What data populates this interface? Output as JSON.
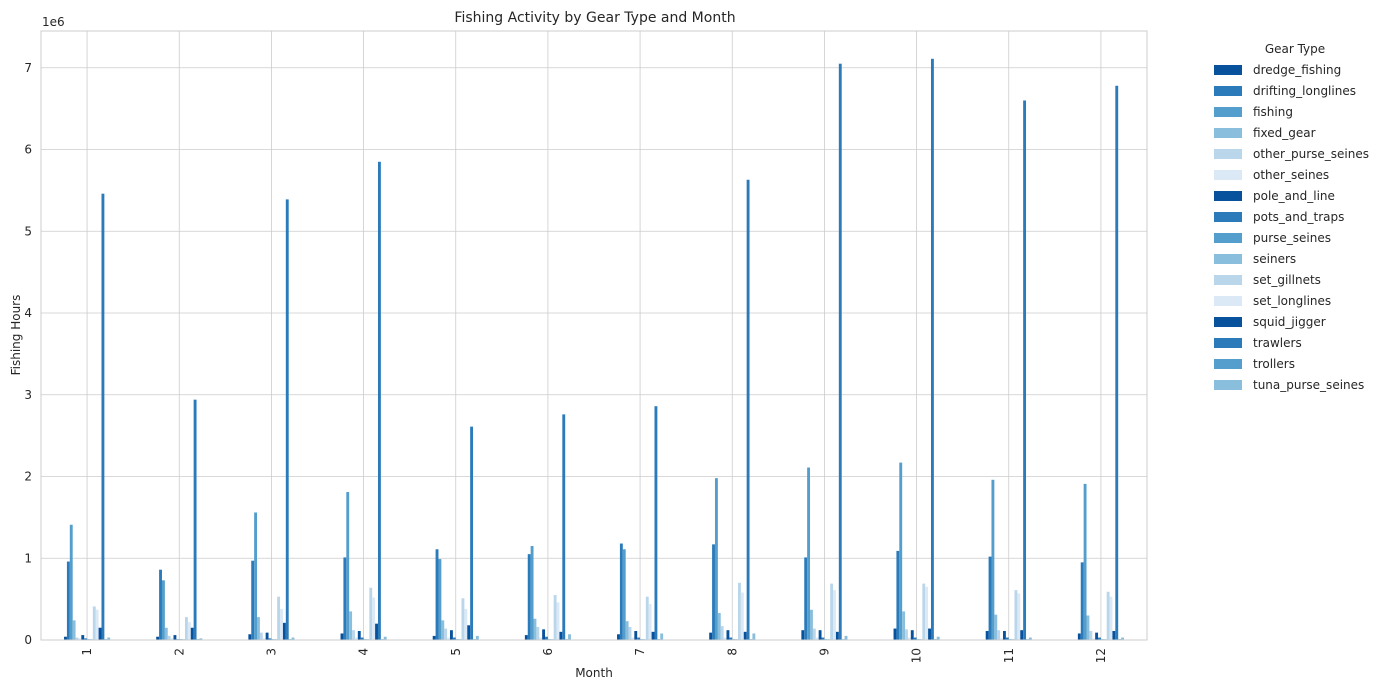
{
  "chart_data": {
    "type": "bar",
    "title": "Fishing Activity by Gear Type and Month",
    "xlabel": "Month",
    "ylabel": "Fishing Hours",
    "y_scale_label": "1e6",
    "ylim": [
      0,
      7.45
    ],
    "yticks": [
      0,
      1,
      2,
      3,
      4,
      5,
      6,
      7
    ],
    "grid": true,
    "legend_title": "Gear Type",
    "legend_position": "outside-right",
    "categories": [
      "1",
      "2",
      "3",
      "4",
      "5",
      "6",
      "7",
      "8",
      "9",
      "10",
      "11",
      "12"
    ],
    "series": [
      {
        "name": "dredge_fishing",
        "color": "#08519c",
        "values": [
          0.04,
          0.04,
          0.07,
          0.08,
          0.05,
          0.06,
          0.07,
          0.09,
          0.12,
          0.14,
          0.11,
          0.08
        ]
      },
      {
        "name": "drifting_longlines",
        "color": "#2b7bba",
        "values": [
          0.96,
          0.86,
          0.97,
          1.01,
          1.11,
          1.05,
          1.18,
          1.17,
          1.01,
          1.09,
          1.02,
          0.95
        ]
      },
      {
        "name": "fishing",
        "color": "#539ecd",
        "values": [
          1.41,
          0.73,
          1.56,
          1.81,
          0.99,
          1.15,
          1.11,
          1.98,
          2.11,
          2.17,
          1.96,
          1.91
        ]
      },
      {
        "name": "fixed_gear",
        "color": "#89bedc",
        "values": [
          0.24,
          0.15,
          0.28,
          0.35,
          0.24,
          0.26,
          0.23,
          0.33,
          0.37,
          0.35,
          0.31,
          0.3
        ]
      },
      {
        "name": "other_purse_seines",
        "color": "#bad6eb",
        "values": [
          0.03,
          0.05,
          0.09,
          0.12,
          0.14,
          0.16,
          0.16,
          0.17,
          0.14,
          0.13,
          0.12,
          0.11
        ]
      },
      {
        "name": "other_seines",
        "color": "#dbe9f6",
        "values": [
          0.02,
          0.02,
          0.02,
          0.03,
          0.03,
          0.03,
          0.03,
          0.03,
          0.03,
          0.03,
          0.02,
          0.02
        ]
      },
      {
        "name": "pole_and_line",
        "color": "#08519c",
        "values": [
          0.06,
          0.06,
          0.09,
          0.11,
          0.12,
          0.13,
          0.11,
          0.12,
          0.12,
          0.12,
          0.11,
          0.09
        ]
      },
      {
        "name": "pots_and_traps",
        "color": "#2b7bba",
        "values": [
          0.02,
          0.01,
          0.02,
          0.03,
          0.03,
          0.04,
          0.03,
          0.03,
          0.03,
          0.03,
          0.03,
          0.03
        ]
      },
      {
        "name": "purse_seines",
        "color": "#539ecd",
        "values": [
          0.01,
          0.01,
          0.01,
          0.01,
          0.01,
          0.01,
          0.01,
          0.01,
          0.01,
          0.01,
          0.01,
          0.01
        ]
      },
      {
        "name": "seiners",
        "color": "#89bedc",
        "values": [
          0.01,
          0.01,
          0.01,
          0.01,
          0.01,
          0.01,
          0.01,
          0.01,
          0.01,
          0.01,
          0.01,
          0.01
        ]
      },
      {
        "name": "set_gillnets",
        "color": "#bad6eb",
        "values": [
          0.41,
          0.28,
          0.53,
          0.64,
          0.51,
          0.55,
          0.53,
          0.7,
          0.69,
          0.69,
          0.61,
          0.59
        ]
      },
      {
        "name": "set_longlines",
        "color": "#dbe9f6",
        "values": [
          0.37,
          0.22,
          0.38,
          0.52,
          0.38,
          0.46,
          0.44,
          0.58,
          0.61,
          0.65,
          0.57,
          0.53
        ]
      },
      {
        "name": "squid_jigger",
        "color": "#08519c",
        "values": [
          0.15,
          0.15,
          0.21,
          0.2,
          0.18,
          0.1,
          0.1,
          0.1,
          0.1,
          0.14,
          0.12,
          0.11
        ]
      },
      {
        "name": "trawlers",
        "color": "#2b7bba",
        "values": [
          5.46,
          2.94,
          5.39,
          5.85,
          2.61,
          2.76,
          2.86,
          5.63,
          7.05,
          7.11,
          6.6,
          6.78
        ]
      },
      {
        "name": "trollers",
        "color": "#539ecd",
        "values": [
          0.01,
          0.01,
          0.01,
          0.01,
          0.01,
          0.01,
          0.01,
          0.01,
          0.01,
          0.01,
          0.01,
          0.01
        ]
      },
      {
        "name": "tuna_purse_seines",
        "color": "#89bedc",
        "values": [
          0.03,
          0.02,
          0.03,
          0.04,
          0.05,
          0.07,
          0.08,
          0.08,
          0.05,
          0.04,
          0.03,
          0.03
        ]
      }
    ]
  }
}
